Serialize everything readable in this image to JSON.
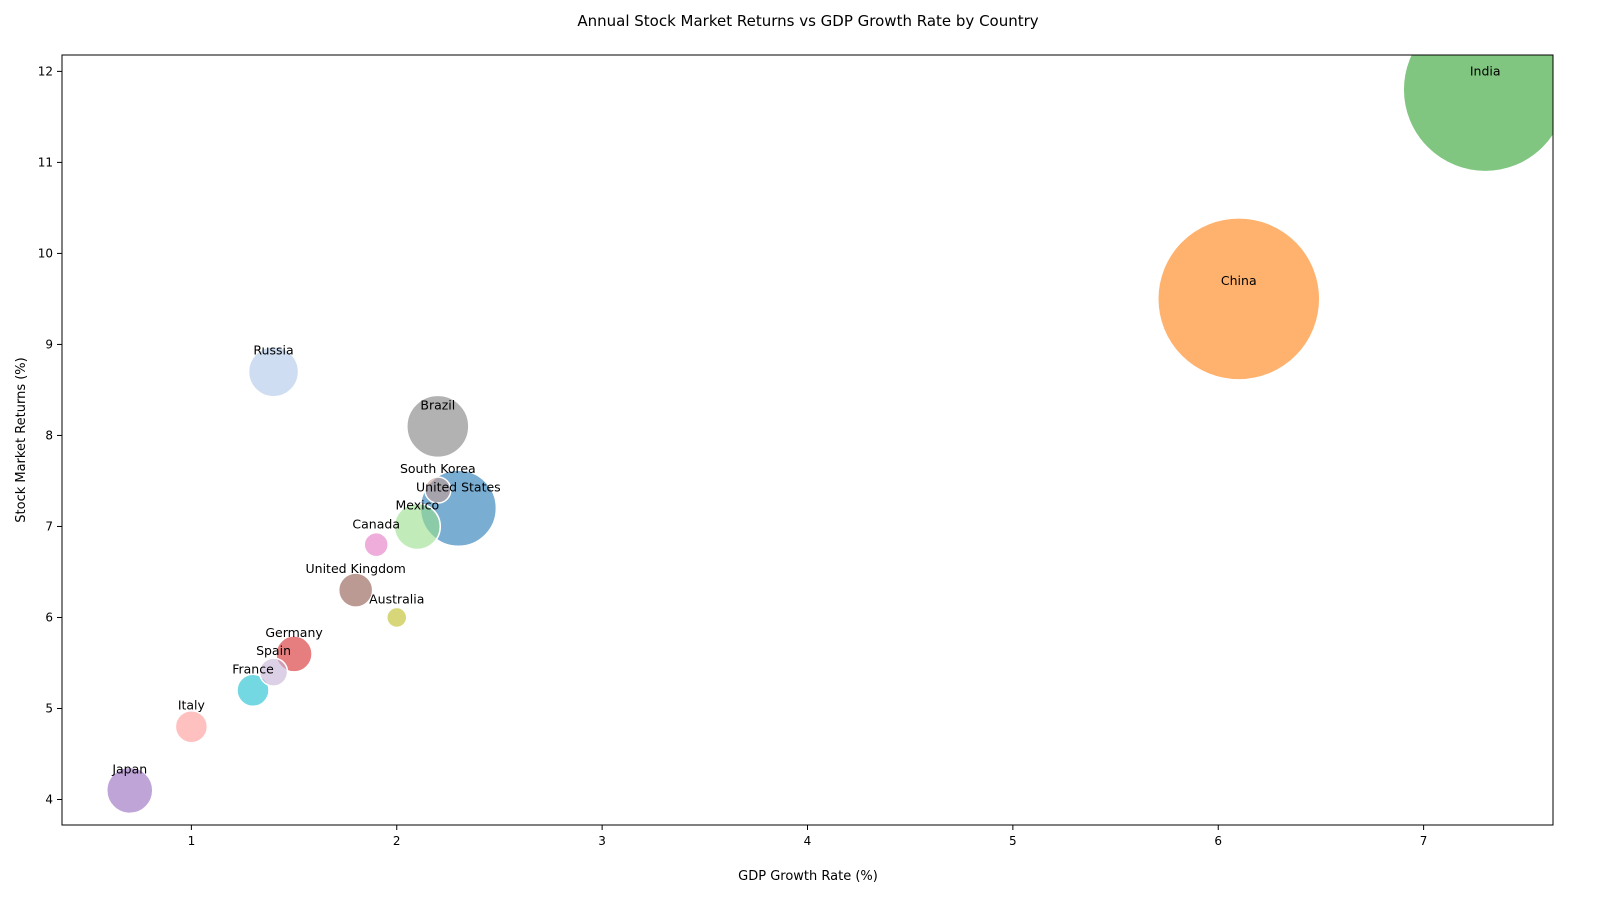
{
  "chart_data": {
    "type": "scatter",
    "title": "Annual Stock Market Returns vs GDP Growth Rate by Country",
    "xlabel": "GDP Growth Rate (%)",
    "ylabel": "Stock Market Returns (%)",
    "xlim": [
      0.37,
      7.63
    ],
    "ylim": [
      3.72,
      12.18
    ],
    "xticks": [
      1,
      2,
      3,
      4,
      5,
      6,
      7
    ],
    "yticks": [
      4,
      5,
      6,
      7,
      8,
      9,
      10,
      11,
      12
    ],
    "grid": false,
    "legend": "none",
    "points": [
      {
        "label": "India",
        "x": 7.3,
        "y": 11.8,
        "size_radius": 82,
        "color": "#2ca02c"
      },
      {
        "label": "China",
        "x": 6.1,
        "y": 9.5,
        "size_radius": 81,
        "color": "#ff7f0e"
      },
      {
        "label": "Russia",
        "x": 1.4,
        "y": 8.7,
        "size_radius": 25,
        "color": "#aec7e8"
      },
      {
        "label": "Brazil",
        "x": 2.2,
        "y": 8.1,
        "size_radius": 31,
        "color": "#7f7f7f"
      },
      {
        "label": "United States",
        "x": 2.3,
        "y": 7.2,
        "size_radius": 38,
        "color": "#1f77b4"
      },
      {
        "label": "South Korea",
        "x": 2.2,
        "y": 7.4,
        "size_radius": 13,
        "color": "#c49c94"
      },
      {
        "label": "Mexico",
        "x": 2.1,
        "y": 7.0,
        "size_radius": 23,
        "color": "#98df8a"
      },
      {
        "label": "Canada",
        "x": 1.9,
        "y": 6.8,
        "size_radius": 12,
        "color": "#e377c2"
      },
      {
        "label": "United Kingdom",
        "x": 1.8,
        "y": 6.3,
        "size_radius": 17,
        "color": "#8c564b"
      },
      {
        "label": "Australia",
        "x": 2.0,
        "y": 6.0,
        "size_radius": 10,
        "color": "#bcbd22"
      },
      {
        "label": "Germany",
        "x": 1.5,
        "y": 5.6,
        "size_radius": 18,
        "color": "#d62728"
      },
      {
        "label": "Spain",
        "x": 1.4,
        "y": 5.4,
        "size_radius": 14,
        "color": "#c5b0d5"
      },
      {
        "label": "France",
        "x": 1.3,
        "y": 5.2,
        "size_radius": 16,
        "color": "#17becf"
      },
      {
        "label": "Italy",
        "x": 1.0,
        "y": 4.8,
        "size_radius": 16,
        "color": "#ff9896"
      },
      {
        "label": "Japan",
        "x": 0.7,
        "y": 4.1,
        "size_radius": 23,
        "color": "#9467bd"
      }
    ]
  }
}
